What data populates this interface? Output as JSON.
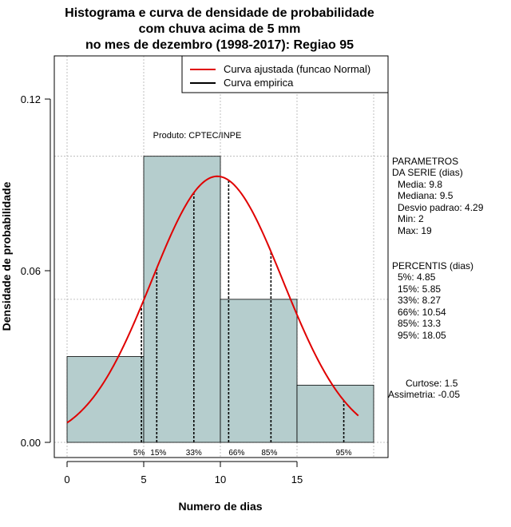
{
  "chart_data": {
    "type": "histogram",
    "title_lines": [
      "Histograma e curva de densidade de probabilidade",
      "com chuva acima de 5 mm",
      "no mes de dezembro (1998-2017): Regiao 95"
    ],
    "xlabel": "Numero de dias",
    "ylabel": "Densidade de probabilidade",
    "xlim": [
      -1,
      21
    ],
    "ylim": [
      -0.005,
      0.135
    ],
    "x_ticks": [
      0,
      5,
      10,
      15
    ],
    "x_tick_labels": [
      "0",
      "5",
      "10",
      "15"
    ],
    "y_ticks": [
      0,
      0.06,
      0.12
    ],
    "y_tick_labels": [
      "0.00",
      "0.06",
      "0.12"
    ],
    "grid": true,
    "bins": [
      {
        "start": 0,
        "end": 5,
        "density": 0.03
      },
      {
        "start": 5,
        "end": 10,
        "density": 0.1
      },
      {
        "start": 10,
        "end": 15,
        "density": 0.05
      },
      {
        "start": 15,
        "end": 20,
        "density": 0.02
      }
    ],
    "normal_fit": {
      "mean": 9.8,
      "sd": 4.29,
      "x_range": [
        0,
        19
      ]
    },
    "legend": {
      "position": "top-right",
      "entries": [
        {
          "label": "Curva ajustada (funcao Normal)",
          "color": "#e00000"
        },
        {
          "label": "Curva empirica",
          "color": "#000000"
        }
      ]
    },
    "product_label": "Produto: CPTEC/INPE",
    "percentiles": [
      {
        "label": "5%",
        "value": 4.85
      },
      {
        "label": "15%",
        "value": 5.85
      },
      {
        "label": "33%",
        "value": 8.27
      },
      {
        "label": "66%",
        "value": 10.54
      },
      {
        "label": "85%",
        "value": 13.3
      },
      {
        "label": "95%",
        "value": 18.05
      }
    ],
    "params_text": {
      "heading1": "PARAMETROS",
      "heading2": "DA SERIE (dias)",
      "media": "Media: 9.8",
      "mediana": "Mediana: 9.5",
      "desvio": "Desvio padrao: 4.29",
      "min": "Min: 2",
      "max": "Max: 19"
    },
    "percentis_text": {
      "heading": "PERCENTIS (dias)",
      "p5": "5%: 4.85",
      "p15": "15%: 5.85",
      "p33": "33%: 8.27",
      "p66": "66%: 10.54",
      "p85": "85%: 13.3",
      "p95": "95%: 18.05"
    },
    "stats_text": {
      "curtose": "Curtose: 1.5",
      "assimetria": "Assimetria: -0.05"
    }
  },
  "colors": {
    "bar_fill": "#b5cdcd",
    "curve": "#e00000",
    "grid": "#b0b0b0"
  }
}
